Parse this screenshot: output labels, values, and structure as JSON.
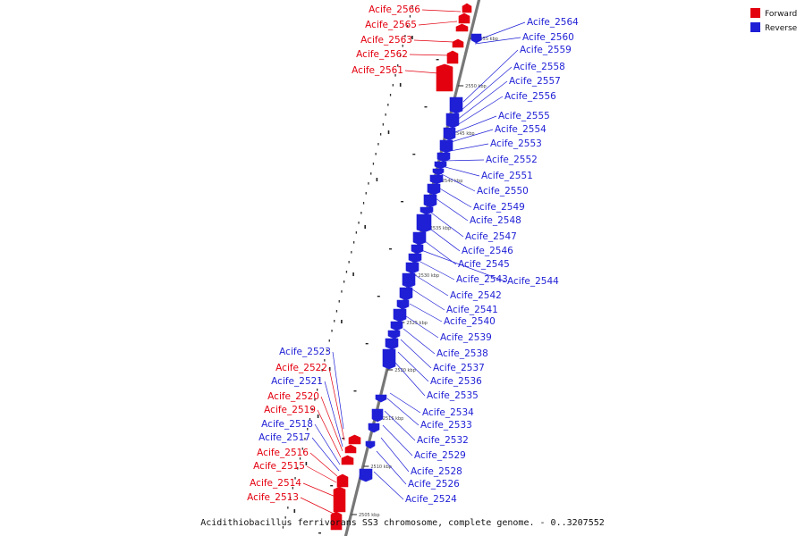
{
  "caption": "Acidithiobacillus ferrivorans SS3 chromosome, complete genome. - 0..3207552",
  "legend": [
    {
      "label": "Forward",
      "color": "#e3000f"
    },
    {
      "label": "Reverse",
      "color": "#1f1fd6"
    }
  ],
  "colors": {
    "forward": "#e3000f",
    "reverse": "#1f1fd6",
    "backbone": "#888888"
  },
  "ticks": [
    "2555 kbp",
    "2550 kbp",
    "2545 kbp",
    "2540 kbp",
    "2535 kbp",
    "2530 kbp",
    "2525 kbp",
    "2520 kbp",
    "2515 kbp",
    "2510 kbp",
    "2505 kbp"
  ],
  "genes": [
    {
      "id": "Acife_2566",
      "strand": "forward"
    },
    {
      "id": "Acife_2565",
      "strand": "forward"
    },
    {
      "id": "Acife_2564",
      "strand": "reverse"
    },
    {
      "id": "Acife_2563",
      "strand": "forward"
    },
    {
      "id": "Acife_2562",
      "strand": "forward"
    },
    {
      "id": "Acife_2561",
      "strand": "forward"
    },
    {
      "id": "Acife_2560",
      "strand": "reverse"
    },
    {
      "id": "Acife_2559",
      "strand": "reverse"
    },
    {
      "id": "Acife_2558",
      "strand": "reverse"
    },
    {
      "id": "Acife_2557",
      "strand": "reverse"
    },
    {
      "id": "Acife_2556",
      "strand": "reverse"
    },
    {
      "id": "Acife_2555",
      "strand": "reverse"
    },
    {
      "id": "Acife_2554",
      "strand": "reverse"
    },
    {
      "id": "Acife_2553",
      "strand": "reverse"
    },
    {
      "id": "Acife_2552",
      "strand": "reverse"
    },
    {
      "id": "Acife_2551",
      "strand": "reverse"
    },
    {
      "id": "Acife_2550",
      "strand": "reverse"
    },
    {
      "id": "Acife_2549",
      "strand": "reverse"
    },
    {
      "id": "Acife_2548",
      "strand": "reverse"
    },
    {
      "id": "Acife_2547",
      "strand": "reverse"
    },
    {
      "id": "Acife_2546",
      "strand": "reverse"
    },
    {
      "id": "Acife_2545",
      "strand": "reverse"
    },
    {
      "id": "Acife_2544",
      "strand": "reverse"
    },
    {
      "id": "Acife_2543",
      "strand": "reverse"
    },
    {
      "id": "Acife_2542",
      "strand": "reverse"
    },
    {
      "id": "Acife_2541",
      "strand": "reverse"
    },
    {
      "id": "Acife_2540",
      "strand": "reverse"
    },
    {
      "id": "Acife_2539",
      "strand": "reverse"
    },
    {
      "id": "Acife_2538",
      "strand": "reverse"
    },
    {
      "id": "Acife_2537",
      "strand": "reverse"
    },
    {
      "id": "Acife_2536",
      "strand": "reverse"
    },
    {
      "id": "Acife_2535",
      "strand": "reverse"
    },
    {
      "id": "Acife_2534",
      "strand": "reverse"
    },
    {
      "id": "Acife_2533",
      "strand": "reverse"
    },
    {
      "id": "Acife_2532",
      "strand": "reverse"
    },
    {
      "id": "Acife_2529",
      "strand": "reverse"
    },
    {
      "id": "Acife_2528",
      "strand": "reverse"
    },
    {
      "id": "Acife_2526",
      "strand": "reverse"
    },
    {
      "id": "Acife_2524",
      "strand": "reverse"
    },
    {
      "id": "Acife_2523",
      "strand": "reverse"
    },
    {
      "id": "Acife_2522",
      "strand": "forward"
    },
    {
      "id": "Acife_2521",
      "strand": "reverse"
    },
    {
      "id": "Acife_2520",
      "strand": "forward"
    },
    {
      "id": "Acife_2519",
      "strand": "forward"
    },
    {
      "id": "Acife_2518",
      "strand": "reverse"
    },
    {
      "id": "Acife_2517",
      "strand": "reverse"
    },
    {
      "id": "Acife_2516",
      "strand": "forward"
    },
    {
      "id": "Acife_2515",
      "strand": "forward"
    },
    {
      "id": "Acife_2514",
      "strand": "forward"
    },
    {
      "id": "Acife_2513",
      "strand": "forward"
    }
  ]
}
